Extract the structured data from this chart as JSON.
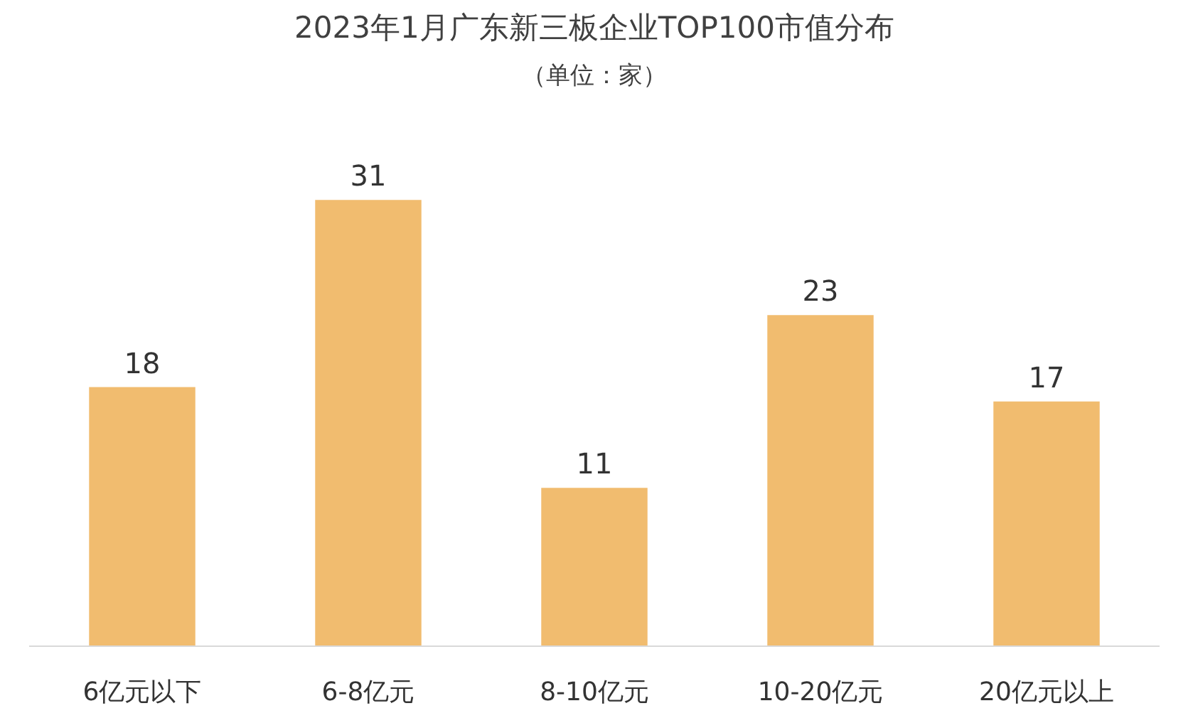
{
  "chart_data": {
    "type": "bar",
    "title": "2023年1月广东新三板企业TOP100市值分布",
    "subtitle": "（单位：家）",
    "categories": [
      "6亿元以下",
      "6-8亿元",
      "8-10亿元",
      "10-20亿元",
      "20亿元以上"
    ],
    "values": [
      18,
      31,
      11,
      23,
      17
    ],
    "color": "#f1bc6f",
    "data_labels": true
  }
}
